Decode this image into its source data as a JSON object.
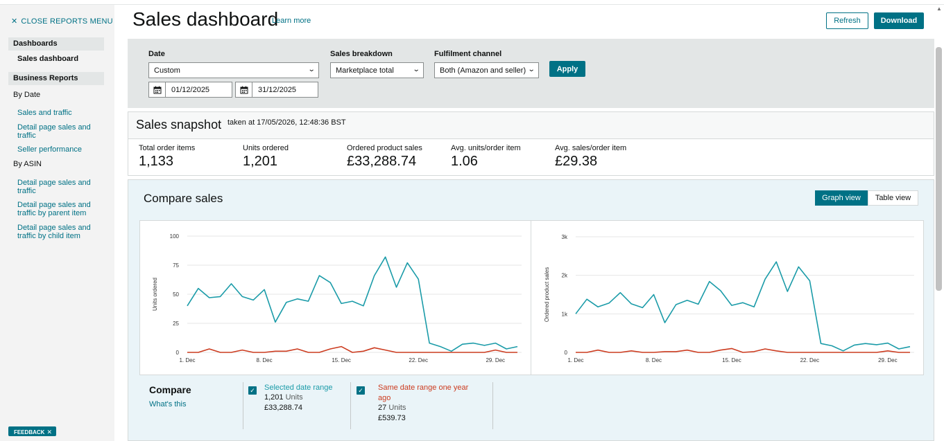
{
  "sidebar": {
    "close_label": "CLOSE REPORTS MENU",
    "dashboards_header": "Dashboards",
    "sales_dashboard": "Sales dashboard",
    "business_reports_header": "Business Reports",
    "by_date": "By Date",
    "by_date_items": [
      "Sales and traffic",
      "Detail page sales and traffic",
      "Seller performance"
    ],
    "by_asin": "By ASIN",
    "by_asin_items": [
      "Detail page sales and traffic",
      "Detail page sales and traffic by parent item",
      "Detail page sales and traffic by child item"
    ],
    "feedback": "FEEDBACK"
  },
  "header": {
    "title": "Sales dashboard",
    "learn_more": "Learn more",
    "refresh": "Refresh",
    "download": "Download"
  },
  "filters": {
    "date_label": "Date",
    "date_value": "Custom",
    "start_date": "01/12/2025",
    "end_date": "31/12/2025",
    "breakdown_label": "Sales breakdown",
    "breakdown_value": "Marketplace total",
    "channel_label": "Fulfilment channel",
    "channel_value": "Both (Amazon and seller)",
    "apply": "Apply"
  },
  "snapshot": {
    "title": "Sales snapshot",
    "taken": "taken at 17/05/2026, 12:48:36 BST",
    "metrics": [
      {
        "label": "Total order items",
        "value": "1,133"
      },
      {
        "label": "Units ordered",
        "value": "1,201"
      },
      {
        "label": "Ordered product sales",
        "value": "£33,288.74"
      },
      {
        "label": "Avg. units/order item",
        "value": "1.06"
      },
      {
        "label": "Avg. sales/order item",
        "value": "£29.38"
      }
    ]
  },
  "compare": {
    "title": "Compare sales",
    "graph_view": "Graph view",
    "table_view": "Table view",
    "compare_label": "Compare",
    "whats_this": "What's this",
    "selected": {
      "name": "Selected date range",
      "units_value": "1,201",
      "units_word": "Units",
      "sales": "£33,288.74",
      "color": "#1a9ba8"
    },
    "previous": {
      "name": "Same date range one year ago",
      "units_value": "27",
      "units_word": "Units",
      "sales": "£539.73",
      "color": "#cc3b1f"
    }
  },
  "chart_data": [
    {
      "type": "line",
      "ylabel": "Units ordered",
      "ylim": [
        0,
        100
      ],
      "y_ticks": [
        "0",
        "25",
        "50",
        "75",
        "100"
      ],
      "y_tick_values": [
        0,
        25,
        50,
        75,
        100
      ],
      "x_ticks": [
        "1. Dec",
        "8. Dec",
        "15. Dec",
        "22. Dec",
        "29. Dec"
      ],
      "x_tick_days": [
        1,
        8,
        15,
        22,
        29
      ],
      "x": [
        1,
        2,
        3,
        4,
        5,
        6,
        7,
        8,
        9,
        10,
        11,
        12,
        13,
        14,
        15,
        16,
        17,
        18,
        19,
        20,
        21,
        22,
        23,
        24,
        25,
        26,
        27,
        28,
        29,
        30,
        31
      ],
      "series": [
        {
          "name": "Selected date range",
          "color": "#1a9ba8",
          "values": [
            40,
            55,
            47,
            48,
            59,
            48,
            45,
            54,
            26,
            43,
            46,
            44,
            66,
            60,
            42,
            44,
            40,
            66,
            82,
            56,
            77,
            63,
            8,
            5,
            1,
            7,
            8,
            6,
            8,
            3,
            5
          ]
        },
        {
          "name": "Same date range one year ago",
          "color": "#cc3b1f",
          "values": [
            0,
            0,
            3,
            0,
            0,
            2,
            0,
            0,
            1,
            1,
            3,
            0,
            0,
            3,
            5,
            0,
            1,
            4,
            2,
            0,
            0,
            0,
            0,
            0,
            0,
            0,
            0,
            0,
            2,
            0,
            0
          ]
        }
      ]
    },
    {
      "type": "line",
      "ylabel": "Ordered product sales",
      "ylim": [
        0,
        3000
      ],
      "y_ticks": [
        "0",
        "1k",
        "2k",
        "3k"
      ],
      "y_tick_values": [
        0,
        1000,
        2000,
        3000
      ],
      "x_ticks": [
        "1. Dec",
        "8. Dec",
        "15. Dec",
        "22. Dec",
        "29. Dec"
      ],
      "x_tick_days": [
        1,
        8,
        15,
        22,
        29
      ],
      "x": [
        1,
        2,
        3,
        4,
        5,
        6,
        7,
        8,
        9,
        10,
        11,
        12,
        13,
        14,
        15,
        16,
        17,
        18,
        19,
        20,
        21,
        22,
        23,
        24,
        25,
        26,
        27,
        28,
        29,
        30,
        31
      ],
      "series": [
        {
          "name": "Selected date range",
          "color": "#1a9ba8",
          "values": [
            1000,
            1380,
            1180,
            1280,
            1550,
            1260,
            1160,
            1500,
            770,
            1240,
            1350,
            1250,
            1840,
            1600,
            1220,
            1290,
            1180,
            1900,
            2350,
            1580,
            2220,
            1860,
            230,
            170,
            40,
            190,
            230,
            200,
            240,
            90,
            150
          ]
        },
        {
          "name": "Same date range one year ago",
          "color": "#cc3b1f",
          "values": [
            0,
            0,
            60,
            0,
            0,
            40,
            0,
            0,
            20,
            20,
            60,
            0,
            0,
            60,
            100,
            0,
            20,
            90,
            40,
            0,
            0,
            0,
            0,
            0,
            0,
            0,
            0,
            0,
            40,
            0,
            0
          ]
        }
      ]
    }
  ]
}
